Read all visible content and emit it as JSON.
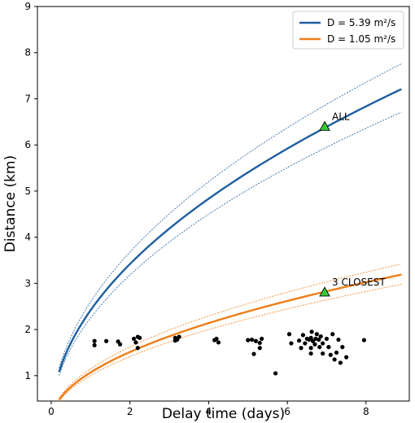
{
  "chart_data": {
    "type": "line",
    "xlabel": "Delay time (days)",
    "ylabel": "Distance (km)",
    "xlim": [
      -0.35,
      9.1
    ],
    "ylim": [
      0.45,
      9
    ],
    "xticks": [
      0,
      2,
      4,
      6,
      8
    ],
    "yticks": [
      1,
      2,
      3,
      4,
      5,
      6,
      7,
      8,
      9
    ],
    "grid": false,
    "legend_position": "top-right",
    "series": [
      {
        "name": "D = 5.39 m²/s",
        "color": "#1f5fa0",
        "diffusivity": 5.39,
        "x_range": [
          0.2,
          8.9
        ],
        "x": [
          0.2,
          0.5,
          1,
          1.5,
          2,
          3,
          4,
          5,
          6,
          7,
          8,
          8.9
        ],
        "y": [
          1.08,
          1.71,
          2.42,
          2.96,
          3.42,
          4.19,
          4.83,
          5.4,
          5.92,
          6.39,
          6.83,
          7.21
        ],
        "bounds": {
          "upper": [
            1.16,
            1.84,
            2.6,
            3.18,
            3.68,
            4.5,
            5.2,
            5.81,
            6.37,
            6.88,
            7.35,
            7.76
          ],
          "lower": [
            1.0,
            1.59,
            2.25,
            2.75,
            3.18,
            3.89,
            4.5,
            5.03,
            5.51,
            5.95,
            6.36,
            6.71
          ]
        }
      },
      {
        "name": "D = 1.05 m²/s",
        "color": "#f07d18",
        "diffusivity": 1.05,
        "x_range": [
          0.2,
          8.9
        ],
        "x": [
          0.2,
          0.5,
          1,
          1.5,
          2,
          3,
          4,
          5,
          6,
          7,
          8,
          8.9
        ],
        "y": [
          0.48,
          0.76,
          1.07,
          1.31,
          1.51,
          1.85,
          2.14,
          2.39,
          2.62,
          2.83,
          3.02,
          3.19
        ],
        "bounds": {
          "upper": [
            0.51,
            0.81,
            1.15,
            1.4,
            1.62,
            1.99,
            2.29,
            2.56,
            2.81,
            3.03,
            3.24,
            3.42
          ],
          "lower": [
            0.45,
            0.71,
            1.0,
            1.22,
            1.41,
            1.73,
            2.0,
            2.24,
            2.45,
            2.65,
            2.83,
            2.98
          ]
        }
      }
    ],
    "markers": [
      {
        "label": "ALL",
        "x": 6.95,
        "y": 6.4,
        "color": "#33cc33"
      },
      {
        "label": "3 CLOSEST",
        "x": 6.95,
        "y": 2.81,
        "color": "#33cc33"
      }
    ],
    "scatter": {
      "color": "#000000",
      "points": [
        [
          1.1,
          1.75
        ],
        [
          1.1,
          1.66
        ],
        [
          1.4,
          1.75
        ],
        [
          1.7,
          1.74
        ],
        [
          1.75,
          1.68
        ],
        [
          2.1,
          1.8
        ],
        [
          2.15,
          1.72
        ],
        [
          2.2,
          1.84
        ],
        [
          2.25,
          1.82
        ],
        [
          2.2,
          1.6
        ],
        [
          3.15,
          1.82
        ],
        [
          3.2,
          1.78
        ],
        [
          3.25,
          1.84
        ],
        [
          3.15,
          1.76
        ],
        [
          4.15,
          1.77
        ],
        [
          4.25,
          1.72
        ],
        [
          4.2,
          1.8
        ],
        [
          5.0,
          1.77
        ],
        [
          5.1,
          1.78
        ],
        [
          5.15,
          1.47
        ],
        [
          5.2,
          1.75
        ],
        [
          5.3,
          1.71
        ],
        [
          5.35,
          1.8
        ],
        [
          5.3,
          1.6
        ],
        [
          5.7,
          1.05
        ],
        [
          6.05,
          1.9
        ],
        [
          6.1,
          1.7
        ],
        [
          6.3,
          1.76
        ],
        [
          6.35,
          1.6
        ],
        [
          6.4,
          1.88
        ],
        [
          6.45,
          1.7
        ],
        [
          6.5,
          1.8
        ],
        [
          6.55,
          1.78
        ],
        [
          6.6,
          1.82
        ],
        [
          6.6,
          1.6
        ],
        [
          6.62,
          1.95
        ],
        [
          6.65,
          1.75
        ],
        [
          6.7,
          1.68
        ],
        [
          6.72,
          1.8
        ],
        [
          6.75,
          1.9
        ],
        [
          6.8,
          1.78
        ],
        [
          6.82,
          1.62
        ],
        [
          6.85,
          1.85
        ],
        [
          6.9,
          1.48
        ],
        [
          6.9,
          1.7
        ],
        [
          7.0,
          1.8
        ],
        [
          7.05,
          1.62
        ],
        [
          7.1,
          1.45
        ],
        [
          7.15,
          1.9
        ],
        [
          7.2,
          1.35
        ],
        [
          7.25,
          1.5
        ],
        [
          7.3,
          1.78
        ],
        [
          7.35,
          1.28
        ],
        [
          7.4,
          1.62
        ],
        [
          7.5,
          1.4
        ],
        [
          7.95,
          1.77
        ],
        [
          6.6,
          1.48
        ]
      ]
    }
  }
}
